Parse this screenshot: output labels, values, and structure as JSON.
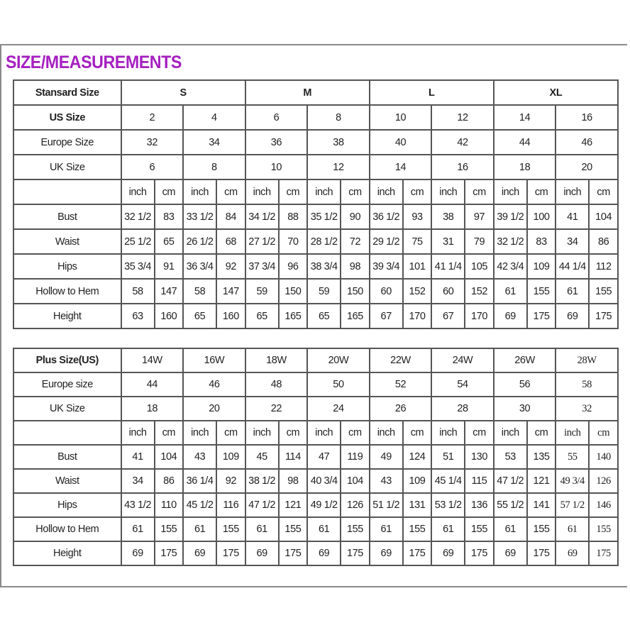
{
  "title": "SIZE/MEASUREMENTS",
  "title_color": "#a61fc0",
  "standard": {
    "header_label": "Stansard Size",
    "groups": [
      "S",
      "M",
      "L",
      "XL"
    ],
    "size_rows": [
      {
        "label": "US Size",
        "values": [
          "2",
          "4",
          "6",
          "8",
          "10",
          "12",
          "14",
          "16"
        ]
      },
      {
        "label": "Europe Size",
        "values": [
          "32",
          "34",
          "36",
          "38",
          "40",
          "42",
          "44",
          "46"
        ]
      },
      {
        "label": "UK Size",
        "values": [
          "6",
          "8",
          "10",
          "12",
          "14",
          "16",
          "18",
          "20"
        ]
      }
    ],
    "units": [
      "inch",
      "cm",
      "inch",
      "cm",
      "inch",
      "cm",
      "inch",
      "cm",
      "inch",
      "cm",
      "inch",
      "cm",
      "inch",
      "cm",
      "inch",
      "cm"
    ],
    "measure_rows": [
      {
        "label": "Bust",
        "values": [
          "32 1/2",
          "83",
          "33 1/2",
          "84",
          "34 1/2",
          "88",
          "35 1/2",
          "90",
          "36 1/2",
          "93",
          "38",
          "97",
          "39 1/2",
          "100",
          "41",
          "104"
        ]
      },
      {
        "label": "Waist",
        "values": [
          "25 1/2",
          "65",
          "26 1/2",
          "68",
          "27 1/2",
          "70",
          "28 1/2",
          "72",
          "29 1/2",
          "75",
          "31",
          "79",
          "32 1/2",
          "83",
          "34",
          "86"
        ]
      },
      {
        "label": "Hips",
        "values": [
          "35 3/4",
          "91",
          "36 3/4",
          "92",
          "37 3/4",
          "96",
          "38 3/4",
          "98",
          "39 3/4",
          "101",
          "41 1/4",
          "105",
          "42 3/4",
          "109",
          "44 1/4",
          "112"
        ]
      },
      {
        "label": "Hollow to Hem",
        "values": [
          "58",
          "147",
          "58",
          "147",
          "59",
          "150",
          "59",
          "150",
          "60",
          "152",
          "60",
          "152",
          "61",
          "155",
          "61",
          "155"
        ]
      },
      {
        "label": "Height",
        "values": [
          "63",
          "160",
          "65",
          "160",
          "65",
          "165",
          "65",
          "165",
          "67",
          "170",
          "67",
          "170",
          "69",
          "175",
          "69",
          "175"
        ]
      }
    ]
  },
  "plus": {
    "size_rows": [
      {
        "label": "Plus Size(US)",
        "values": [
          "14W",
          "16W",
          "18W",
          "20W",
          "22W",
          "24W",
          "26W",
          "28W"
        ]
      },
      {
        "label": "Europe size",
        "values": [
          "44",
          "46",
          "48",
          "50",
          "52",
          "54",
          "56",
          "58"
        ]
      },
      {
        "label": "UK Size",
        "values": [
          "18",
          "20",
          "22",
          "24",
          "26",
          "28",
          "30",
          "32"
        ]
      }
    ],
    "units": [
      "inch",
      "cm",
      "inch",
      "cm",
      "inch",
      "cm",
      "inch",
      "cm",
      "inch",
      "cm",
      "inch",
      "cm",
      "inch",
      "cm",
      "inch",
      "cm"
    ],
    "measure_rows": [
      {
        "label": "Bust",
        "values": [
          "41",
          "104",
          "43",
          "109",
          "45",
          "114",
          "47",
          "119",
          "49",
          "124",
          "51",
          "130",
          "53",
          "135",
          "55",
          "140"
        ]
      },
      {
        "label": "Waist",
        "values": [
          "34",
          "86",
          "36 1/4",
          "92",
          "38 1/2",
          "98",
          "40 3/4",
          "104",
          "43",
          "109",
          "45 1/4",
          "115",
          "47 1/2",
          "121",
          "49 3/4",
          "126"
        ]
      },
      {
        "label": "Hips",
        "values": [
          "43 1/2",
          "110",
          "45 1/2",
          "116",
          "47 1/2",
          "121",
          "49 1/2",
          "126",
          "51 1/2",
          "131",
          "53 1/2",
          "136",
          "55 1/2",
          "141",
          "57 1/2",
          "146"
        ]
      },
      {
        "label": "Hollow to Hem",
        "values": [
          "61",
          "155",
          "61",
          "155",
          "61",
          "155",
          "61",
          "155",
          "61",
          "155",
          "61",
          "155",
          "61",
          "155",
          "61",
          "155"
        ]
      },
      {
        "label": "Height",
        "values": [
          "69",
          "175",
          "69",
          "175",
          "69",
          "175",
          "69",
          "175",
          "69",
          "175",
          "69",
          "175",
          "69",
          "175",
          "69",
          "175"
        ]
      }
    ]
  }
}
